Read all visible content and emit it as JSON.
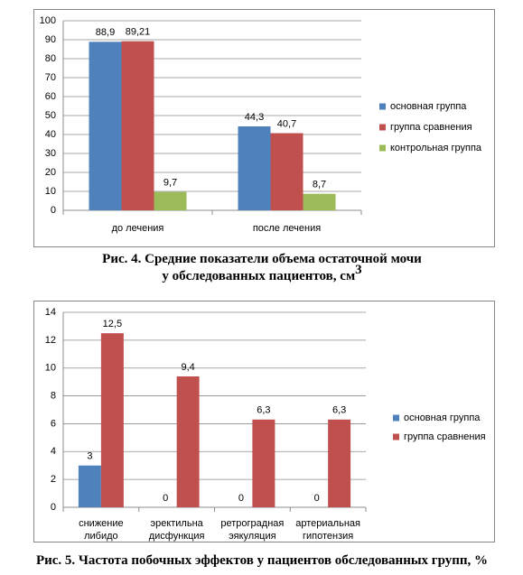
{
  "chart_data": [
    {
      "type": "bar",
      "categories": [
        "до лечения",
        "после лечения"
      ],
      "series": [
        {
          "name": "основная группа",
          "color": "#4f81bd",
          "values": [
            88.9,
            44.3
          ],
          "value_labels": [
            "88,9",
            "44,3"
          ]
        },
        {
          "name": "группа сравнения",
          "color": "#c0504d",
          "values": [
            89.21,
            40.7
          ],
          "value_labels": [
            "89,21",
            "40,7"
          ]
        },
        {
          "name": "контрольная группа",
          "color": "#9bbb59",
          "values": [
            9.7,
            8.7
          ],
          "value_labels": [
            "9,7",
            "8,7"
          ]
        }
      ],
      "ylim": [
        0,
        100
      ],
      "yticks": [
        0,
        10,
        20,
        30,
        40,
        50,
        60,
        70,
        80,
        90,
        100
      ],
      "grid": true,
      "legend": "right",
      "caption": [
        "Рис. 4. Средние показатели объема остаточной мочи",
        "у обследованных пациентов, см"
      ],
      "caption_sup": "3"
    },
    {
      "type": "bar",
      "categories": [
        [
          "снижение",
          "либидо"
        ],
        [
          "эректильна",
          "дисфункция"
        ],
        [
          "ретроградная",
          "эякуляция"
        ],
        [
          "артериальная",
          "гипотензия"
        ]
      ],
      "series": [
        {
          "name": "основная группа",
          "color": "#4f81bd",
          "values": [
            3,
            0,
            0,
            0
          ]
        },
        {
          "name": "группа сравнения",
          "color": "#c0504d",
          "values": [
            12.5,
            9.4,
            6.3,
            6.3
          ],
          "value_labels": [
            "12,5",
            "9,4",
            "6,3",
            "6,3"
          ]
        }
      ],
      "ylim": [
        0,
        14
      ],
      "yticks": [
        0,
        2,
        4,
        6,
        8,
        10,
        12,
        14
      ],
      "grid": true,
      "legend": "right",
      "caption": [
        "Рис. 5. Частота побочных эффектов у пациентов обследованных групп, %"
      ]
    }
  ]
}
